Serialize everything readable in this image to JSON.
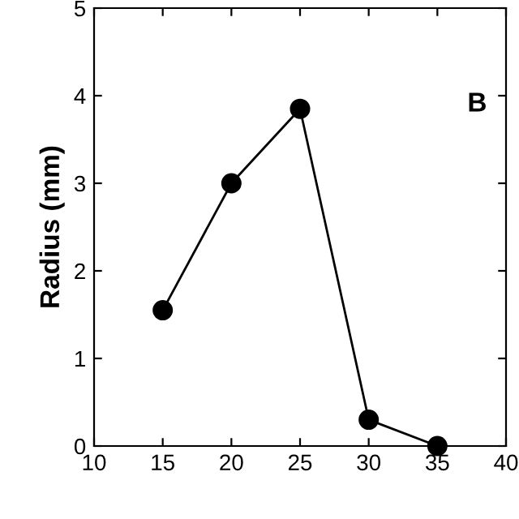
{
  "chart_data": {
    "type": "line",
    "ylabel": "Radius (mm)",
    "annotations": [
      "B"
    ],
    "x": [
      15,
      20,
      25,
      30,
      35
    ],
    "series": [
      {
        "color": "#000000",
        "values": [
          1.55,
          3.0,
          3.85,
          0.3,
          0.0
        ]
      }
    ],
    "xlim": [
      10,
      40
    ],
    "xticks": [
      10,
      15,
      20,
      25,
      30,
      35,
      40
    ],
    "ylim": [
      0,
      5
    ],
    "yticks": [
      0,
      1,
      2,
      3,
      4,
      5
    ],
    "marker": "circle",
    "line_style": "solid",
    "grid": false,
    "legend": false
  }
}
